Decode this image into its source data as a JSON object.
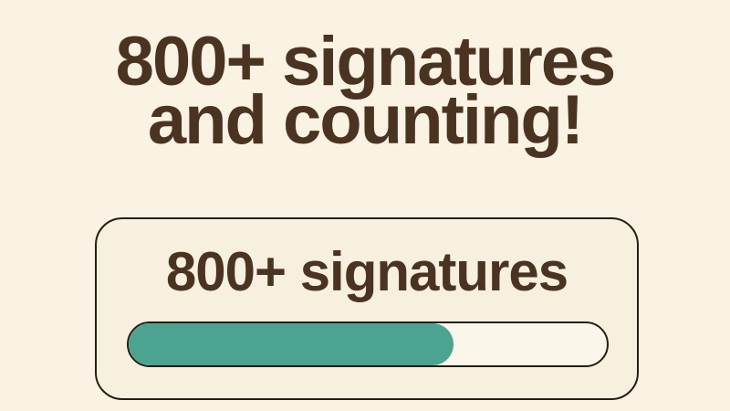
{
  "graphic": {
    "heading": {
      "line1": "800+ signatures",
      "line2": "and counting!"
    },
    "card": {
      "title": "800+ signatures",
      "progress": {
        "percent": 68
      }
    },
    "colors": {
      "background": "#faf3e3",
      "card_background": "#f8f0de",
      "track_background": "#fbf6ea",
      "border": "#241e15",
      "text": "#4b3322",
      "progress_fill": "#4ca390"
    }
  }
}
